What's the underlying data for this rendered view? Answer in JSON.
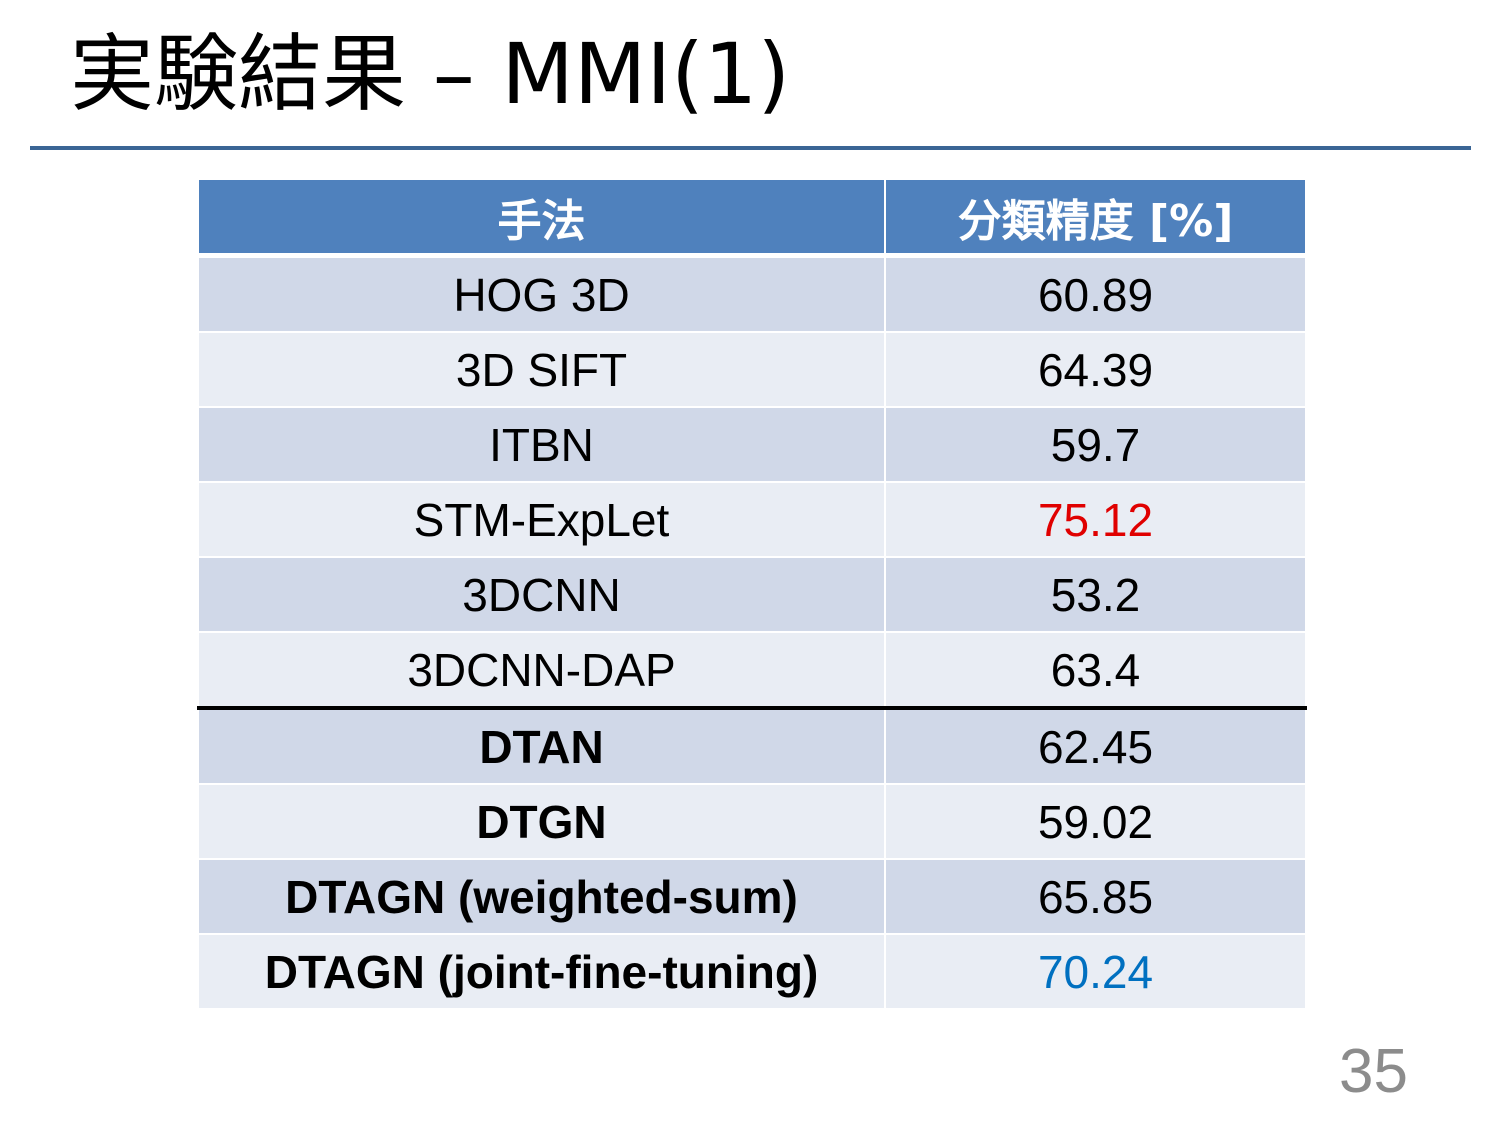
{
  "slide": {
    "title": "実験結果 – MMI(1)",
    "page_number": "35"
  },
  "table": {
    "headers": {
      "method": "手法",
      "accuracy": "分類精度 [%]"
    },
    "rows": [
      {
        "method": "HOG 3D",
        "accuracy": "60.89",
        "bold": false,
        "accuracy_color": "#000000"
      },
      {
        "method": "3D SIFT",
        "accuracy": "64.39",
        "bold": false,
        "accuracy_color": "#000000"
      },
      {
        "method": "ITBN",
        "accuracy": "59.7",
        "bold": false,
        "accuracy_color": "#000000"
      },
      {
        "method": "STM-ExpLet",
        "accuracy": "75.12",
        "bold": false,
        "accuracy_color": "#e00000"
      },
      {
        "method": "3DCNN",
        "accuracy": "53.2",
        "bold": false,
        "accuracy_color": "#000000"
      },
      {
        "method": "3DCNN-DAP",
        "accuracy": "63.4",
        "bold": false,
        "accuracy_color": "#000000"
      },
      {
        "method": "DTAN",
        "accuracy": "62.45",
        "bold": true,
        "accuracy_color": "#000000"
      },
      {
        "method": "DTGN",
        "accuracy": "59.02",
        "bold": true,
        "accuracy_color": "#000000"
      },
      {
        "method": "DTAGN (weighted-sum)",
        "accuracy": "65.85",
        "bold": true,
        "accuracy_color": "#000000"
      },
      {
        "method": "DTAGN (joint-fine-tuning)",
        "accuracy": "70.24",
        "bold": true,
        "accuracy_color": "#0070c0"
      }
    ]
  },
  "colors": {
    "header_background": "#4f81bd",
    "row_dark": "#d0d8e8",
    "row_light": "#e9edf4",
    "title_rule": "#3a6595",
    "best_prior_highlight": "#e00000",
    "best_proposed_highlight": "#0070c0"
  }
}
